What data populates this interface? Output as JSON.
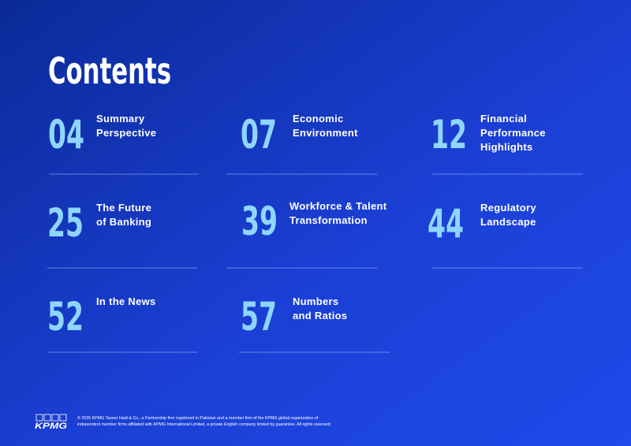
{
  "header": {
    "title": "Contents"
  },
  "items": [
    {
      "number": "04",
      "label": [
        "Summary",
        "Perspective"
      ]
    },
    {
      "number": "07",
      "label": [
        "Economic",
        "Environment"
      ]
    },
    {
      "number": "12",
      "label": [
        "Financial",
        "Performance",
        "Highlights"
      ]
    },
    {
      "number": "25",
      "label": [
        "The Future",
        "of Banking"
      ]
    },
    {
      "number": "39",
      "label": [
        "Workforce & Talent",
        "Transformation"
      ]
    },
    {
      "number": "44",
      "label": [
        "Regulatory",
        "Landscape"
      ]
    },
    {
      "number": "52",
      "label": [
        "In the News"
      ]
    },
    {
      "number": "57",
      "label": [
        "Numbers",
        "and Ratios"
      ]
    }
  ],
  "footer": {
    "logo": "KPMG",
    "text": [
      "© 2026 KPMG Taseer Hadi & Co., a Partnership firm registered in Pakistan and a member firm of the KPMG global organization of",
      "independent member firms affiliated with KPMG International Limited, a private English company limited by guarantee. All rights reserved."
    ]
  }
}
